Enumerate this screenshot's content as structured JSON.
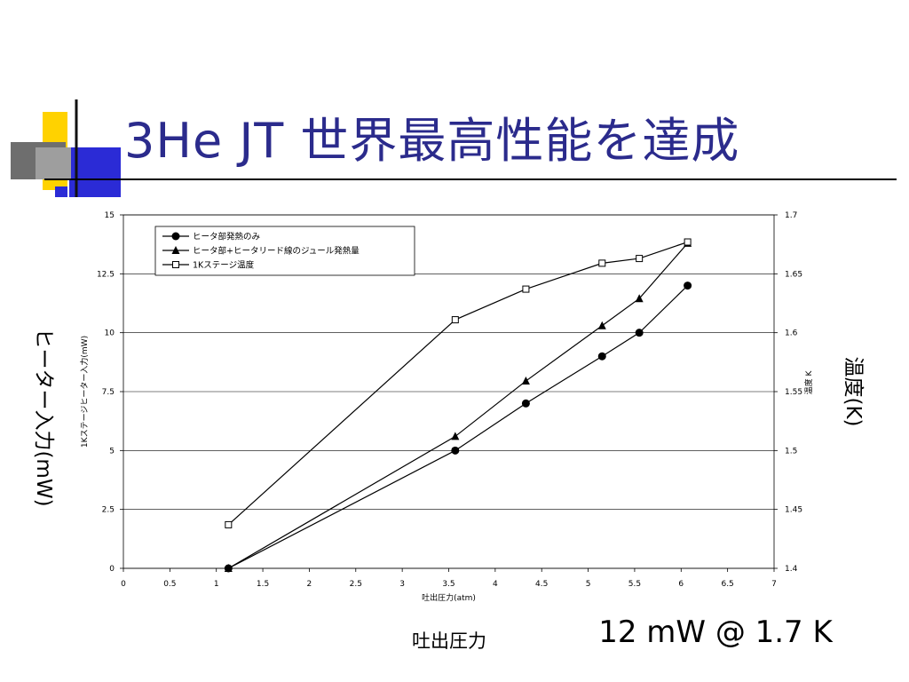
{
  "slide": {
    "title": "3He JT 世界最高性能を達成",
    "left_axis_title": "ヒーター入力(mW)",
    "right_axis_title": "温度(K)",
    "x_axis_title": "吐出圧力",
    "note": "12 mW @ 1.7 K"
  },
  "colors": {
    "title": "#2b2b8c",
    "accent_yellow": "#ffd200",
    "accent_blue": "#2b2bd6",
    "gridline": "#000000",
    "series": "#000000"
  },
  "chart_data": {
    "type": "line",
    "xlabel": "吐出圧力(atm)",
    "ylabel_left": "1Kステージヒーター入力(mW)",
    "ylabel_right": "温度 K",
    "xlim": [
      0,
      7
    ],
    "ylim_left": [
      0,
      15
    ],
    "ylim_right": [
      1.4,
      1.7
    ],
    "x_ticks": [
      "0",
      "0.5",
      "1",
      "1.5",
      "2",
      "2.5",
      "3",
      "3.5",
      "4",
      "4.5",
      "5",
      "5.5",
      "6",
      "6.5",
      "7"
    ],
    "y_ticks_left": [
      "0",
      "2.5",
      "5",
      "7.5",
      "10",
      "12.5",
      "15"
    ],
    "y_ticks_right": [
      "1.4",
      "1.45",
      "1.5",
      "1.55",
      "1.6",
      "1.65",
      "1.7"
    ],
    "grid": "horizontal",
    "legend_position": "top-left",
    "series": [
      {
        "name": "ヒータ部発熱のみ",
        "axis": "left",
        "marker": "filled-circle",
        "x": [
          1.13,
          3.57,
          4.33,
          5.15,
          5.55,
          6.07
        ],
        "y": [
          0,
          5.0,
          7.0,
          9.0,
          10.0,
          12.0
        ]
      },
      {
        "name": "ヒータ部+ヒータリード線のジュール発熱量",
        "axis": "left",
        "marker": "filled-triangle",
        "x": [
          1.13,
          3.57,
          4.33,
          5.15,
          5.55,
          6.07
        ],
        "y": [
          0,
          5.6,
          7.95,
          10.3,
          11.45,
          13.8
        ]
      },
      {
        "name": "1Kステージ温度",
        "axis": "right",
        "marker": "open-square",
        "x": [
          1.13,
          3.57,
          4.33,
          5.15,
          5.55,
          6.07
        ],
        "y": [
          1.437,
          1.611,
          1.637,
          1.659,
          1.663,
          1.677
        ]
      }
    ]
  }
}
